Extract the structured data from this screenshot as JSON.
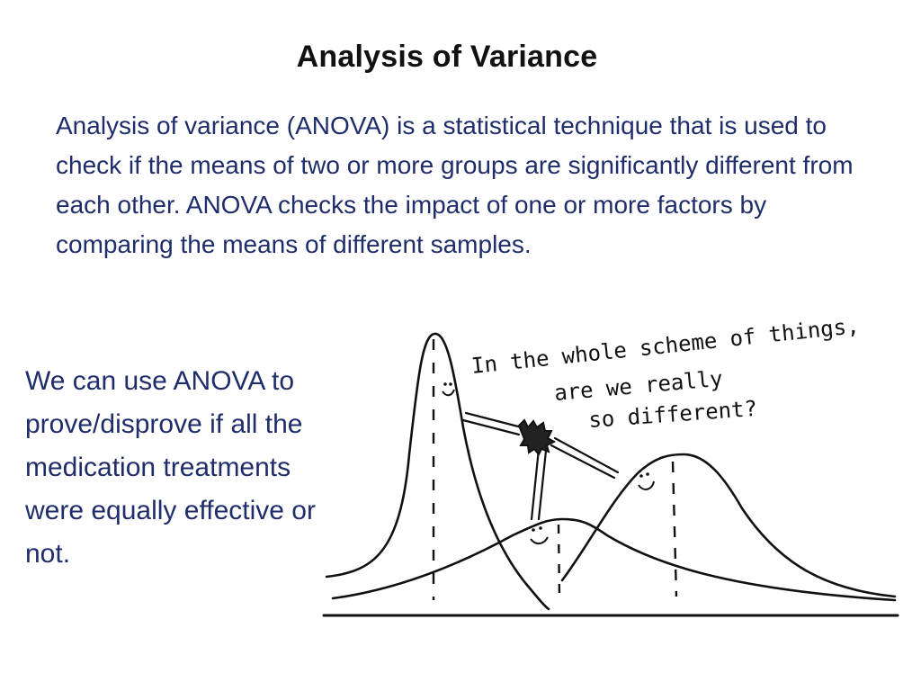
{
  "slide": {
    "title": "Analysis of Variance",
    "intro": "Analysis of variance (ANOVA) is a statistical technique that is used to check if the means of two or more groups are significantly different from each other. ANOVA checks the impact of one or more factors by comparing the means of different samples.",
    "side_note": "We can use ANOVA to prove/disprove if all the medication treatments were equally effective or not."
  },
  "cartoon": {
    "speech_line_1": "In the whole scheme of things,",
    "speech_line_2": "are we really",
    "speech_line_3": "so different?"
  },
  "colors": {
    "title": "#111111",
    "body_text": "#1f2d6b",
    "ink": "#111111",
    "background": "#ffffff"
  }
}
